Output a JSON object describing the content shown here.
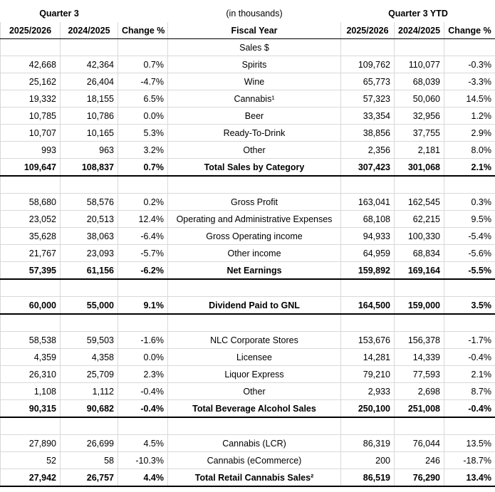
{
  "header": {
    "quarter": "Quarter 3",
    "units": "(in thousands)",
    "ytd": "Quarter 3 YTD"
  },
  "columns": [
    "2025/2026",
    "2024/2025",
    "Change %",
    "Fiscal Year",
    "2025/2026",
    "2024/2025",
    "Change %"
  ],
  "sections": [
    {
      "title": "Sales $",
      "rows": [
        [
          "42,668",
          "42,364",
          "0.7%",
          "Spirits",
          "109,762",
          "110,077",
          "-0.3%"
        ],
        [
          "25,162",
          "26,404",
          "-4.7%",
          "Wine",
          "65,773",
          "68,039",
          "-3.3%"
        ],
        [
          "19,332",
          "18,155",
          "6.5%",
          "Cannabis¹",
          "57,323",
          "50,060",
          "14.5%"
        ],
        [
          "10,785",
          "10,786",
          "0.0%",
          "Beer",
          "33,354",
          "32,956",
          "1.2%"
        ],
        [
          "10,707",
          "10,165",
          "5.3%",
          "Ready-To-Drink",
          "38,856",
          "37,755",
          "2.9%"
        ],
        [
          "993",
          "963",
          "3.2%",
          "Other",
          "2,356",
          "2,181",
          "8.0%"
        ]
      ],
      "total": [
        "109,647",
        "108,837",
        "0.7%",
        "Total Sales by Category",
        "307,423",
        "301,068",
        "2.1%"
      ]
    },
    {
      "rows": [
        [
          "58,680",
          "58,576",
          "0.2%",
          "Gross Profit",
          "163,041",
          "162,545",
          "0.3%"
        ],
        [
          "23,052",
          "20,513",
          "12.4%",
          "Operating and Administrative Expenses",
          "68,108",
          "62,215",
          "9.5%"
        ],
        [
          "35,628",
          "38,063",
          "-6.4%",
          "Gross Operating income",
          "94,933",
          "100,330",
          "-5.4%"
        ],
        [
          "21,767",
          "23,093",
          "-5.7%",
          "Other income",
          "64,959",
          "68,834",
          "-5.6%"
        ]
      ],
      "total": [
        "57,395",
        "61,156",
        "-6.2%",
        "Net Earnings",
        "159,892",
        "169,164",
        "-5.5%"
      ]
    },
    {
      "rows": [],
      "total": [
        "60,000",
        "55,000",
        "9.1%",
        "Dividend Paid to GNL",
        "164,500",
        "159,000",
        "3.5%"
      ]
    },
    {
      "rows": [
        [
          "58,538",
          "59,503",
          "-1.6%",
          "NLC Corporate Stores",
          "153,676",
          "156,378",
          "-1.7%"
        ],
        [
          "4,359",
          "4,358",
          "0.0%",
          "Licensee",
          "14,281",
          "14,339",
          "-0.4%"
        ],
        [
          "26,310",
          "25,709",
          "2.3%",
          "Liquor Express",
          "79,210",
          "77,593",
          "2.1%"
        ],
        [
          "1,108",
          "1,112",
          "-0.4%",
          "Other",
          "2,933",
          "2,698",
          "8.7%"
        ]
      ],
      "total": [
        "90,315",
        "90,682",
        "-0.4%",
        "Total Beverage Alcohol Sales",
        "250,100",
        "251,008",
        "-0.4%"
      ]
    },
    {
      "rows": [
        [
          "27,890",
          "26,699",
          "4.5%",
          "Cannabis (LCR)",
          "86,319",
          "76,044",
          "13.5%"
        ],
        [
          "52",
          "58",
          "-10.3%",
          "Cannabis (eCommerce)",
          "200",
          "246",
          "-18.7%"
        ]
      ],
      "total": [
        "27,942",
        "26,757",
        "4.4%",
        "Total Retail Cannabis Sales²",
        "86,519",
        "76,290",
        "13.4%"
      ]
    }
  ]
}
